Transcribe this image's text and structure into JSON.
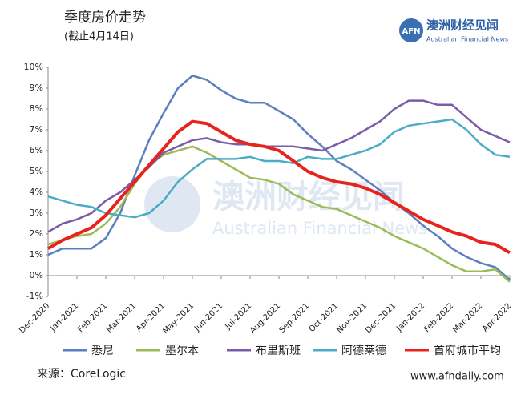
{
  "chart_data": {
    "type": "line",
    "title": "季度房价走势",
    "subtitle": "(截止4月14日)",
    "source": "来源：CoreLogic",
    "logo": {
      "mark": "AFN",
      "name": "澳洲财经见闻",
      "english": "Australian Financial News"
    },
    "watermark": {
      "name": "澳洲财经见闻",
      "english": "Australian Financial News"
    },
    "website": "www.afndaily.com",
    "categories": [
      "Dec-2020",
      null,
      "Jan-2021",
      null,
      "Feb-2021",
      null,
      "Mar-2021",
      null,
      "Apr-2021",
      null,
      "May-2021",
      null,
      "Jun-2021",
      null,
      "Jul-2021",
      null,
      "Aug-2021",
      null,
      "Sep-2021",
      null,
      "Oct-2021",
      null,
      "Nov-2021",
      null,
      "Dec-2021",
      null,
      "Jan-2022",
      null,
      "Feb-2022",
      null,
      "Mar-2022",
      null,
      "Apr-2022"
    ],
    "series": [
      {
        "name": "悉尼",
        "color": "#5b7fbf",
        "values": [
          1.0,
          1.3,
          1.3,
          1.3,
          1.8,
          3.0,
          4.8,
          6.5,
          7.8,
          9.0,
          9.6,
          9.4,
          8.9,
          8.5,
          8.3,
          8.3,
          7.9,
          7.5,
          6.8,
          6.2,
          5.5,
          5.1,
          4.6,
          4.1,
          3.5,
          3.0,
          2.4,
          1.9,
          1.3,
          0.9,
          0.6,
          0.4,
          -0.2
        ]
      },
      {
        "name": "墨尔本",
        "color": "#9bbb59",
        "values": [
          1.5,
          1.7,
          1.9,
          2.0,
          2.5,
          3.3,
          4.4,
          5.3,
          5.8,
          6.0,
          6.2,
          5.9,
          5.5,
          5.1,
          4.7,
          4.6,
          4.4,
          3.9,
          3.6,
          3.3,
          3.2,
          2.9,
          2.6,
          2.3,
          1.9,
          1.6,
          1.3,
          0.9,
          0.5,
          0.2,
          0.2,
          0.3,
          -0.3
        ]
      },
      {
        "name": "布里斯班",
        "color": "#7a5ca8",
        "values": [
          2.1,
          2.5,
          2.7,
          3.0,
          3.6,
          4.0,
          4.6,
          5.2,
          5.9,
          6.2,
          6.5,
          6.6,
          6.4,
          6.3,
          6.3,
          6.2,
          6.2,
          6.2,
          6.1,
          6.0,
          6.3,
          6.6,
          7.0,
          7.4,
          8.0,
          8.4,
          8.4,
          8.2,
          8.2,
          7.6,
          7.0,
          6.7,
          6.4
        ]
      },
      {
        "name": "阿德莱德",
        "color": "#4bacc6",
        "values": [
          3.8,
          3.6,
          3.4,
          3.3,
          3.0,
          2.9,
          2.8,
          3.0,
          3.6,
          4.5,
          5.1,
          5.6,
          5.6,
          5.6,
          5.7,
          5.5,
          5.5,
          5.4,
          5.7,
          5.6,
          5.6,
          5.8,
          6.0,
          6.3,
          6.9,
          7.2,
          7.3,
          7.4,
          7.5,
          7.0,
          6.3,
          5.8,
          5.7
        ]
      },
      {
        "name": "首府城市平均",
        "color": "#e8231d",
        "values": [
          1.3,
          1.7,
          2.0,
          2.3,
          2.9,
          3.7,
          4.5,
          5.3,
          6.1,
          6.9,
          7.4,
          7.3,
          6.9,
          6.5,
          6.3,
          6.2,
          6.0,
          5.5,
          5.0,
          4.7,
          4.5,
          4.4,
          4.2,
          3.9,
          3.5,
          3.1,
          2.7,
          2.4,
          2.1,
          1.9,
          1.6,
          1.5,
          1.1
        ]
      }
    ],
    "ylim": [
      -1,
      10
    ],
    "yticks": [
      {
        "value": -1,
        "label": "-1%"
      },
      {
        "value": 0,
        "label": "0%"
      },
      {
        "value": 1,
        "label": "1%"
      },
      {
        "value": 2,
        "label": "2%"
      },
      {
        "value": 3,
        "label": "3%"
      },
      {
        "value": 4,
        "label": "4%"
      },
      {
        "value": 5,
        "label": "5%"
      },
      {
        "value": 6,
        "label": "6%"
      },
      {
        "value": 7,
        "label": "7%"
      },
      {
        "value": 8,
        "label": "8%"
      },
      {
        "value": 9,
        "label": "9%"
      },
      {
        "value": 10,
        "label": "10%"
      }
    ],
    "grid": false
  }
}
